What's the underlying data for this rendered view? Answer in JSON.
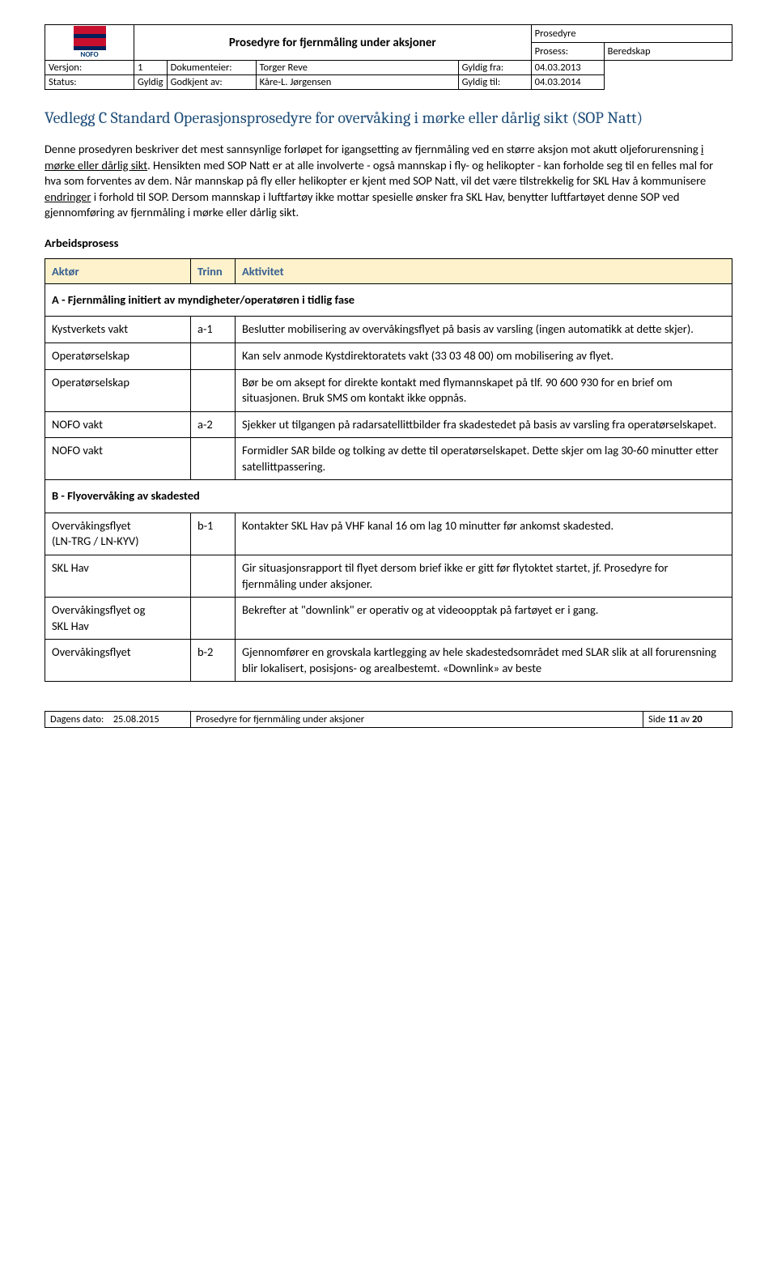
{
  "header": {
    "logo_text": "NOFO",
    "doc_title": "Prosedyre for fjernmåling under aksjoner",
    "top_right_label": "Prosedyre",
    "process_label": "Prosess:",
    "process_value": "Beredskap",
    "version_label": "Versjon:",
    "version_value": "1",
    "owner_label": "Dokumenteier:",
    "owner_value": "Torger Reve",
    "valid_from_label": "Gyldig fra:",
    "valid_from_value": "04.03.2013",
    "status_label": "Status:",
    "status_value": "Gyldig",
    "approved_label": "Godkjent av:",
    "approved_value": "Kåre-L. Jørgensen",
    "valid_to_label": "Gyldig til:",
    "valid_to_value": "04.03.2014"
  },
  "title": "Vedlegg C Standard Operasjonsprosedyre for overvåking i mørke eller dårlig sikt (SOP Natt)",
  "intro_p1a": "Denne prosedyren beskriver det mest sannsynlige forløpet for igangsetting av fjernmåling ved en større aksjon mot akutt oljeforurensning ",
  "intro_underline1": "i mørke eller dårlig sikt",
  "intro_p1b": ". Hensikten med SOP Natt er at alle involverte - også mannskap i fly- og helikopter - kan forholde seg til en felles mal for hva som forventes av dem. Når mannskap på fly eller helikopter er kjent med SOP Natt, vil det være tilstrekkelig for SKL Hav å kommunisere ",
  "intro_underline2": "endringer",
  "intro_p1c": " i forhold til SOP. Dersom mannskap i luftfartøy ikke mottar spesielle ønsker fra SKL Hav, benytter luftfartøyet denne SOP ved gjennomføring av fjernmåling i mørke eller dårlig sikt.",
  "arbeidsprosess_label": "Arbeidsprosess",
  "table": {
    "headers": {
      "actor": "Aktør",
      "step": "Trinn",
      "activity": "Aktivitet"
    },
    "section_a": "A - Fjernmåling initiert av myndigheter/operatøren i tidlig fase",
    "section_b": "B - Flyovervåking av skadested",
    "rows_a": [
      {
        "actor": "Kystverkets vakt",
        "step": "a-1",
        "activity": "Beslutter mobilisering av overvåkingsflyet på basis av varsling (ingen automatikk at dette skjer)."
      },
      {
        "actor": "Operatørselskap",
        "step": "",
        "activity": "Kan selv anmode Kystdirektoratets vakt (33 03 48 00) om mobilisering av flyet."
      },
      {
        "actor": "Operatørselskap",
        "step": "",
        "activity": "Bør be om aksept for direkte kontakt med flymannskapet på tlf. 90 600 930 for en brief om situasjonen. Bruk SMS om kontakt ikke oppnås."
      },
      {
        "actor": "NOFO vakt",
        "step": "a-2",
        "activity": "Sjekker ut tilgangen på radarsatellittbilder fra skadestedet på basis av varsling fra operatørselskapet."
      },
      {
        "actor": "NOFO vakt",
        "step": "",
        "activity": "Formidler SAR bilde og tolking av dette til operatørselskapet. Dette skjer om lag 30-60 minutter etter satellittpassering."
      }
    ],
    "rows_b": [
      {
        "actor": "Overvåkingsflyet\n(LN-TRG / LN-KYV)",
        "step": "b-1",
        "activity": "Kontakter SKL Hav på VHF kanal 16 om lag 10 minutter før ankomst skadested."
      },
      {
        "actor": "SKL Hav",
        "step": "",
        "activity": "Gir situasjonsrapport til flyet dersom brief ikke er gitt før flytoktet startet, jf. Prosedyre for fjernmåling under aksjoner."
      },
      {
        "actor": "Overvåkingsflyet og\nSKL Hav",
        "step": "",
        "activity": "Bekrefter at \"downlink\" er operativ og at videoopptak på fartøyet er i gang."
      },
      {
        "actor": "Overvåkingsflyet",
        "step": "b-2",
        "activity": "Gjennomfører en grovskala kartlegging av hele skadestedsområdet med SLAR slik at all forurensning blir lokalisert, posisjons- og arealbestemt. «Downlink» av beste"
      }
    ]
  },
  "footer": {
    "date_label": "Dagens dato:",
    "date_value": "25.08.2015",
    "center": "Prosedyre for fjernmåling under aksjoner",
    "page": "Side 11 av 20"
  },
  "colors": {
    "heading": "#1f4e79",
    "th_bg": "#fdf2cc",
    "th_text": "#365f91"
  }
}
